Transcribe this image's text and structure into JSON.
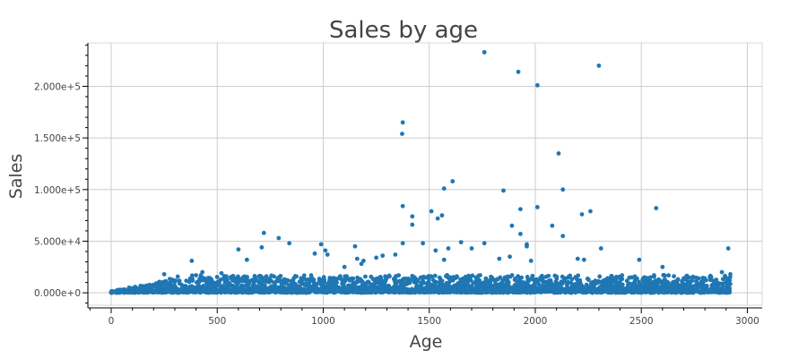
{
  "chart_data": {
    "type": "scatter",
    "title": "Sales by age",
    "xlabel": "Age",
    "ylabel": "Sales",
    "xlim": [
      -110,
      3070
    ],
    "ylim": [
      -12000,
      242000
    ],
    "x_ticks": [
      0,
      500,
      1000,
      1500,
      2000,
      2500,
      3000
    ],
    "x_tick_labels": [
      "0",
      "500",
      "1000",
      "1500",
      "2000",
      "2500",
      "3000"
    ],
    "y_ticks": [
      0,
      50000,
      100000,
      150000,
      200000
    ],
    "y_tick_labels": [
      "0.000e+0",
      "5.000e+4",
      "1.000e+5",
      "1.500e+5",
      "2.000e+5"
    ],
    "grid": true,
    "legend": "none",
    "point_color": "#1f77b4",
    "series": [
      {
        "points": [
          [
            1760,
            233000
          ],
          [
            1920,
            214000
          ],
          [
            2300,
            220000
          ],
          [
            2010,
            201000
          ],
          [
            1375,
            165000
          ],
          [
            1372,
            154000
          ],
          [
            2110,
            135000
          ],
          [
            1610,
            108000
          ],
          [
            1570,
            101000
          ],
          [
            2130,
            100000
          ],
          [
            1850,
            99000
          ],
          [
            1375,
            84000
          ],
          [
            2010,
            83000
          ],
          [
            1930,
            81000
          ],
          [
            2570,
            82000
          ],
          [
            1510,
            79000
          ],
          [
            2260,
            79000
          ],
          [
            1560,
            75000
          ],
          [
            1420,
            74000
          ],
          [
            1540,
            72000
          ],
          [
            2220,
            76000
          ],
          [
            1420,
            66000
          ],
          [
            1890,
            65000
          ],
          [
            2080,
            65000
          ],
          [
            720,
            58000
          ],
          [
            1930,
            57000
          ],
          [
            2130,
            55000
          ],
          [
            790,
            53000
          ],
          [
            1650,
            49000
          ],
          [
            840,
            48000
          ],
          [
            990,
            47000
          ],
          [
            1375,
            48000
          ],
          [
            1470,
            48000
          ],
          [
            1760,
            48000
          ],
          [
            1960,
            47000
          ],
          [
            1960,
            45000
          ],
          [
            1150,
            45000
          ],
          [
            710,
            44000
          ],
          [
            1590,
            43000
          ],
          [
            1700,
            43000
          ],
          [
            2910,
            43000
          ],
          [
            2310,
            43000
          ],
          [
            600,
            42000
          ],
          [
            1010,
            41000
          ],
          [
            1530,
            41000
          ],
          [
            960,
            38000
          ],
          [
            1020,
            37000
          ],
          [
            1340,
            37000
          ],
          [
            1280,
            36000
          ],
          [
            1880,
            35000
          ],
          [
            640,
            32000
          ],
          [
            380,
            31000
          ],
          [
            2490,
            32000
          ],
          [
            1570,
            32000
          ],
          [
            1980,
            31000
          ],
          [
            1830,
            33000
          ],
          [
            2200,
            33000
          ],
          [
            2230,
            32000
          ],
          [
            1250,
            34000
          ],
          [
            1160,
            33000
          ],
          [
            1190,
            31000
          ],
          [
            2600,
            25000
          ],
          [
            2880,
            20000
          ],
          [
            2920,
            18000
          ],
          [
            400,
            17000
          ],
          [
            430,
            20000
          ],
          [
            250,
            18000
          ],
          [
            520,
            19000
          ],
          [
            1100,
            25000
          ],
          [
            1180,
            28000
          ],
          [
            2560,
            17000
          ],
          [
            2700,
            14000
          ]
        ]
      }
    ]
  }
}
